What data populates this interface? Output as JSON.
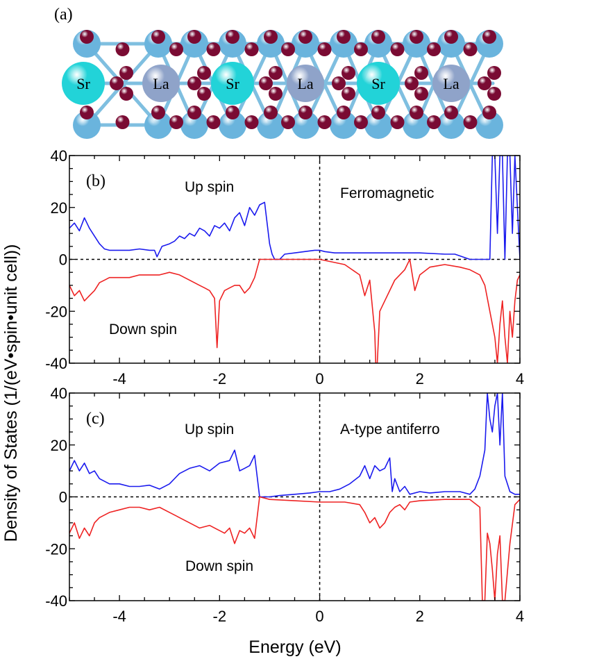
{
  "panel_a": {
    "label": "(a)",
    "atoms": [
      "Sr",
      "La",
      "Sr",
      "La",
      "Sr",
      "La"
    ],
    "colors": {
      "sr": "#22d3d8",
      "la": "#8fa3c9",
      "small": "#6ab4dd",
      "oxygen": "#7a0b33",
      "bond": "#7fbfe0"
    }
  },
  "axes": {
    "ylabel": "Density of States (1/(eV•spin•unit cell))",
    "xlabel": "Energy (eV)"
  },
  "chart_data": [
    {
      "type": "line",
      "panel_label": "(b)",
      "annotations": [
        "Up spin",
        "Down spin",
        "Ferromagnetic"
      ],
      "xlim": [
        -5,
        4
      ],
      "ylim": [
        -40,
        40
      ],
      "xticks": [
        -4,
        -2,
        0,
        2,
        4
      ],
      "yticks": [
        -40,
        -20,
        0,
        20,
        40
      ],
      "series": [
        {
          "color": "#1a1aee",
          "x": [
            -5,
            -4.9,
            -4.8,
            -4.7,
            -4.6,
            -4.5,
            -4.4,
            -4.3,
            -4.2,
            -4.0,
            -3.8,
            -3.6,
            -3.4,
            -3.3,
            -3.25,
            -3.2,
            -3.15,
            -3.0,
            -2.9,
            -2.8,
            -2.7,
            -2.6,
            -2.5,
            -2.4,
            -2.3,
            -2.2,
            -2.1,
            -2.0,
            -1.9,
            -1.8,
            -1.7,
            -1.6,
            -1.5,
            -1.4,
            -1.3,
            -1.2,
            -1.1,
            -1.0,
            -0.95,
            -0.9,
            -0.8,
            -0.7,
            -0.5,
            -0.3,
            -0.1,
            0.0,
            0.1,
            0.3,
            0.5,
            1.0,
            1.5,
            2.0,
            2.5,
            2.7,
            3.0,
            3.3,
            3.4,
            3.45,
            3.5,
            3.55,
            3.6,
            3.65,
            3.7,
            3.75,
            3.8,
            3.85,
            3.9,
            4.0
          ],
          "y": [
            12,
            14,
            11,
            16,
            12,
            9,
            6,
            4,
            3.5,
            3.5,
            3.5,
            4,
            3.5,
            3.5,
            1,
            3,
            5,
            6,
            7,
            9,
            8,
            10,
            9,
            12,
            11,
            9,
            13,
            12,
            14,
            11,
            16,
            18,
            13,
            20,
            17,
            21,
            22,
            6,
            2,
            0,
            0,
            2,
            2.5,
            3,
            3.5,
            3.5,
            3,
            2.5,
            2.5,
            2.5,
            2.5,
            2.5,
            2,
            2,
            0,
            0,
            0,
            40,
            40,
            10,
            40,
            40,
            0,
            40,
            40,
            10,
            40,
            0
          ]
        },
        {
          "color": "#ee2222",
          "x": [
            -5,
            -4.9,
            -4.8,
            -4.7,
            -4.6,
            -4.5,
            -4.4,
            -4.3,
            -4.2,
            -4.0,
            -3.8,
            -3.6,
            -3.4,
            -3.2,
            -3.0,
            -2.8,
            -2.6,
            -2.4,
            -2.3,
            -2.2,
            -2.1,
            -2.05,
            -2.0,
            -1.9,
            -1.8,
            -1.7,
            -1.6,
            -1.5,
            -1.4,
            -1.3,
            -1.2,
            -1.0,
            -0.5,
            0.0,
            0.5,
            0.8,
            0.9,
            1.0,
            1.1,
            1.12,
            1.15,
            1.2,
            1.3,
            1.4,
            1.5,
            1.6,
            1.7,
            1.8,
            1.9,
            2.0,
            2.2,
            2.5,
            2.8,
            3.0,
            3.2,
            3.3,
            3.4,
            3.5,
            3.55,
            3.6,
            3.65,
            3.7,
            3.75,
            3.8,
            3.85,
            3.9,
            3.95,
            4.0
          ],
          "y": [
            -10,
            -14,
            -12,
            -16,
            -14,
            -12,
            -9,
            -8,
            -7,
            -7,
            -7,
            -6,
            -6,
            -6,
            -5,
            -6,
            -8,
            -10,
            -11,
            -12,
            -15,
            -34,
            -16,
            -12,
            -11,
            -10,
            -10,
            -13,
            -11,
            -7,
            0,
            0,
            0,
            0,
            -2,
            -6,
            -14,
            -8,
            -28,
            -40,
            -40,
            -20,
            -16,
            -12,
            -8,
            -6,
            -4,
            0,
            -12,
            -6,
            -3,
            -2,
            -3,
            -4,
            -6,
            -10,
            -20,
            -30,
            -40,
            -25,
            -16,
            -30,
            -40,
            -20,
            -30,
            -16,
            -8,
            -6
          ]
        }
      ]
    },
    {
      "type": "line",
      "panel_label": "(c)",
      "annotations": [
        "Up spin",
        "Down spin",
        "A-type antiferro"
      ],
      "xlim": [
        -5,
        4
      ],
      "ylim": [
        -40,
        40
      ],
      "xticks": [
        -4,
        -2,
        0,
        2,
        4
      ],
      "yticks": [
        -40,
        -20,
        0,
        20,
        40
      ],
      "series": [
        {
          "color": "#1a1aee",
          "x": [
            -5,
            -4.9,
            -4.8,
            -4.7,
            -4.6,
            -4.5,
            -4.4,
            -4.3,
            -4.2,
            -4.0,
            -3.8,
            -3.6,
            -3.4,
            -3.2,
            -3.0,
            -2.8,
            -2.6,
            -2.4,
            -2.2,
            -2.0,
            -1.8,
            -1.7,
            -1.6,
            -1.5,
            -1.4,
            -1.3,
            -1.25,
            -1.2,
            -1.0,
            -0.8,
            -0.5,
            -0.2,
            0.0,
            0.2,
            0.4,
            0.6,
            0.8,
            0.9,
            1.0,
            1.1,
            1.2,
            1.3,
            1.4,
            1.45,
            1.5,
            1.6,
            1.7,
            1.8,
            2.0,
            2.2,
            2.5,
            2.8,
            3.0,
            3.1,
            3.2,
            3.3,
            3.35,
            3.4,
            3.45,
            3.5,
            3.55,
            3.6,
            3.65,
            3.7,
            3.8,
            3.9,
            4.0
          ],
          "y": [
            10,
            14,
            10,
            13,
            9,
            10,
            7,
            6,
            5,
            5,
            4,
            4,
            4.5,
            3,
            5,
            9,
            11,
            12,
            10,
            13,
            14,
            18,
            10,
            11,
            12,
            16,
            8,
            0,
            0,
            0.5,
            1,
            1.5,
            2,
            2,
            3,
            5,
            8,
            12,
            7,
            12,
            10,
            11,
            15,
            2,
            7,
            2,
            4,
            1,
            2,
            1.5,
            2,
            2,
            1,
            3,
            8,
            18,
            40,
            30,
            25,
            35,
            40,
            20,
            40,
            8,
            2,
            1,
            1
          ]
        },
        {
          "color": "#ee2222",
          "x": [
            -5,
            -4.9,
            -4.8,
            -4.7,
            -4.6,
            -4.5,
            -4.4,
            -4.3,
            -4.2,
            -4.0,
            -3.8,
            -3.6,
            -3.4,
            -3.2,
            -3.0,
            -2.8,
            -2.6,
            -2.4,
            -2.2,
            -2.0,
            -1.9,
            -1.8,
            -1.7,
            -1.6,
            -1.5,
            -1.4,
            -1.3,
            -1.2,
            -1.0,
            -0.5,
            0.0,
            0.5,
            0.8,
            0.9,
            1.0,
            1.1,
            1.2,
            1.3,
            1.4,
            1.5,
            1.6,
            1.7,
            1.8,
            2.0,
            2.5,
            3.0,
            3.2,
            3.25,
            3.3,
            3.35,
            3.4,
            3.45,
            3.5,
            3.55,
            3.6,
            3.65,
            3.7,
            3.8,
            3.9,
            4.0
          ],
          "y": [
            -14,
            -10,
            -16,
            -12,
            -15,
            -10,
            -8,
            -7,
            -6,
            -5,
            -4,
            -4,
            -5,
            -4,
            -6,
            -8,
            -10,
            -12,
            -11,
            -13,
            -14,
            -12,
            -18,
            -13,
            -14,
            -12,
            -16,
            0,
            -1,
            -1.5,
            -2,
            -2,
            -3,
            -6,
            -10,
            -8,
            -12,
            -10,
            -6,
            -4,
            -3,
            -5,
            -2,
            -1.5,
            -1,
            -1,
            -4,
            -40,
            -40,
            -14,
            -18,
            -28,
            -40,
            -22,
            -15,
            -40,
            -40,
            -18,
            -3,
            -1
          ]
        }
      ]
    }
  ]
}
